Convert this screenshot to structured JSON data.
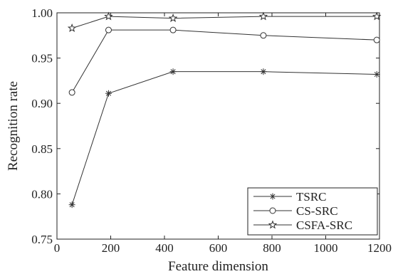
{
  "chart_data": {
    "type": "line",
    "title": "",
    "xlabel": "Feature dimension",
    "ylabel": "Recognition rate",
    "xlim": [
      0,
      1200
    ],
    "ylim": [
      0.75,
      1.0
    ],
    "xticks": [
      0,
      200,
      400,
      600,
      800,
      1000,
      1200
    ],
    "xtick_labels": [
      "0",
      "200",
      "400",
      "600",
      "800",
      "1000",
      "1200"
    ],
    "yticks": [
      0.75,
      0.8,
      0.85,
      0.9,
      0.95,
      1.0
    ],
    "ytick_labels": [
      "0.75",
      "0.80",
      "0.85",
      "0.90",
      "0.95",
      "1.00"
    ],
    "grid": false,
    "legend_position": "bottom-right",
    "x": [
      56,
      192,
      432,
      768,
      1190
    ],
    "series": [
      {
        "name": "TSRC",
        "marker": "asterisk",
        "values": [
          0.788,
          0.911,
          0.935,
          0.935,
          0.932
        ]
      },
      {
        "name": "CS-SRC",
        "marker": "circle",
        "values": [
          0.912,
          0.981,
          0.981,
          0.975,
          0.97
        ]
      },
      {
        "name": "CSFA-SRC",
        "marker": "star",
        "values": [
          0.983,
          0.996,
          0.994,
          0.996,
          0.996
        ]
      }
    ],
    "line_color": "#333333"
  }
}
